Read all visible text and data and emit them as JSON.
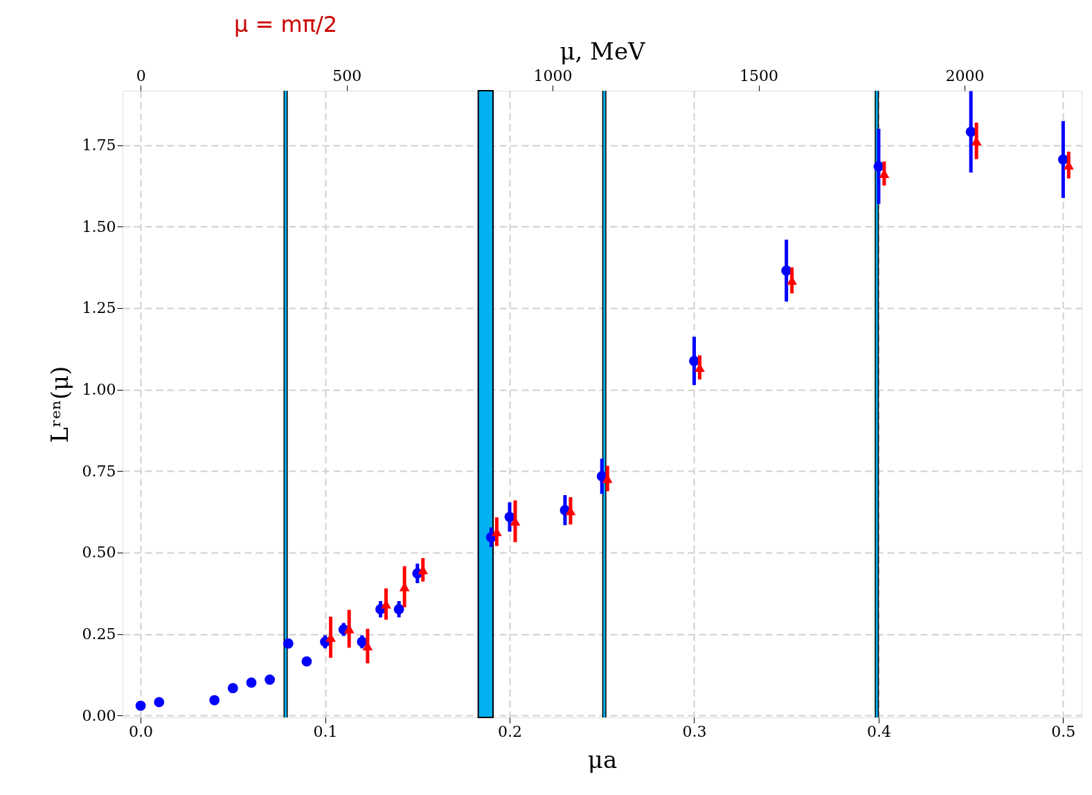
{
  "chart_data": {
    "type": "scatter",
    "xlabel": "μa",
    "ylabel": "Lʳᵉⁿ(μ)",
    "x2label": "μ, MeV",
    "xlim": [
      -0.0098,
      0.51
    ],
    "ylim": [
      -0.006,
      1.917
    ],
    "x2lim": [
      -44,
      2284
    ],
    "xticks": [
      {
        "value": 0,
        "label": "0.0"
      },
      0.1,
      0.2,
      0.3,
      0.4,
      0.5
    ],
    "x2ticks": [
      0,
      500,
      1000,
      1500,
      2000
    ],
    "yticks": [
      {
        "value": 0,
        "label": "0.00"
      },
      0.25,
      {
        "value": 0.5,
        "label": "0.50"
      },
      0.75,
      {
        "value": 1,
        "label": "1.00"
      },
      1.25,
      {
        "value": 1.5,
        "label": "1.50"
      },
      1.75
    ],
    "grid": true,
    "series": [
      {
        "color": "#0000ff",
        "marker": "circle",
        "x": [
          0,
          0.01,
          0.04,
          0.05,
          0.06,
          0.07,
          0.08,
          0.09,
          0.1,
          0.11,
          0.12,
          0.13,
          0.14,
          0.15,
          0.19,
          0.2,
          0.23,
          0.25,
          0.3,
          0.35,
          0.4,
          0.45,
          0.5
        ],
        "values": [
          0.03,
          0.041,
          0.047,
          0.084,
          0.101,
          0.11,
          0.221,
          0.166,
          0.226,
          0.264,
          0.226,
          0.326,
          0.326,
          0.436,
          0.547,
          0.609,
          0.63,
          0.734,
          1.088,
          1.365,
          1.685,
          1.791,
          1.706
        ],
        "errors": [
          null,
          null,
          null,
          null,
          0.01,
          0.008,
          0.015,
          0.012,
          0.02,
          0.02,
          0.02,
          0.025,
          0.025,
          0.03,
          0.03,
          0.045,
          0.046,
          0.054,
          0.074,
          0.095,
          0.115,
          0.125,
          0.118
        ]
      },
      {
        "color": "#ff0000",
        "marker": "triangle",
        "x": [
          0.103,
          0.113,
          0.123,
          0.133,
          0.143,
          0.153,
          0.193,
          0.203,
          0.233,
          0.253,
          0.303,
          0.353,
          0.403,
          0.453,
          0.503
        ],
        "values": [
          0.24,
          0.266,
          0.213,
          0.342,
          0.395,
          0.447,
          0.564,
          0.596,
          0.628,
          0.727,
          1.068,
          1.335,
          1.663,
          1.763,
          1.689
        ],
        "errors": [
          0.063,
          0.058,
          0.053,
          0.048,
          0.063,
          0.036,
          0.044,
          0.064,
          0.042,
          0.039,
          0.037,
          0.04,
          0.037,
          0.056,
          0.041
        ]
      }
    ],
    "ref_lines": [
      {
        "axis": "x",
        "value": 0.0786,
        "label": "μ = mπ/2",
        "color": "#00b0f0"
      },
      {
        "axis": "x",
        "value": 0.2513,
        "color": "#00b0f0"
      },
      {
        "axis": "x",
        "value": 0.399,
        "color": "#00b0f0"
      }
    ],
    "bands": [
      {
        "axis": "x",
        "from": 0.183,
        "to": 0.191,
        "color": "#00b0f0"
      }
    ]
  }
}
